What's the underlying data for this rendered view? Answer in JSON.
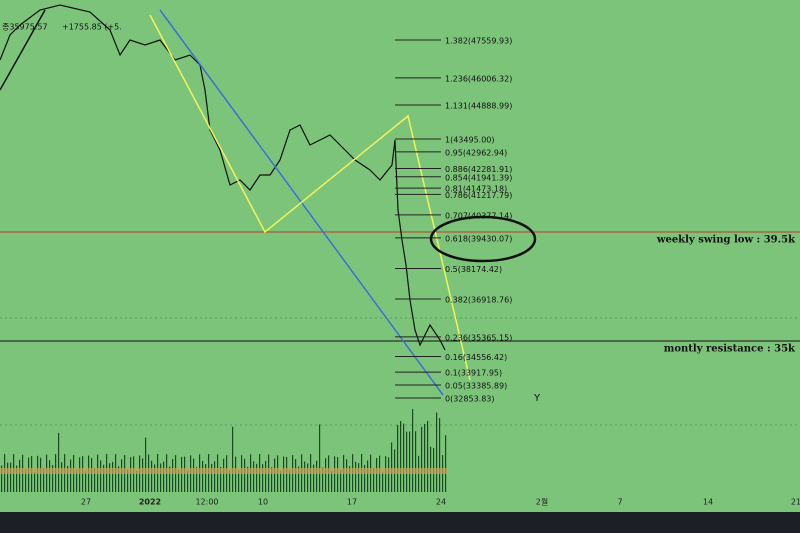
{
  "header": {
    "price": "종35975.57",
    "change": "+1755.85 (+5."
  },
  "fib_levels": [
    {
      "value": 47559.93,
      "label": "1.382(47559.93)"
    },
    {
      "value": 46006.32,
      "label": "1.236(46006.32)"
    },
    {
      "value": 44888.99,
      "label": "1.131(44888.99)"
    },
    {
      "value": 43495.0,
      "label": "1(43495.00)"
    },
    {
      "value": 42962.94,
      "label": "0.95(42962.94)"
    },
    {
      "value": 42281.91,
      "label": "0.886(42281.91)"
    },
    {
      "value": 41941.39,
      "label": "0.854(41941.39)"
    },
    {
      "value": 41473.18,
      "label": "0.81(41473.18)"
    },
    {
      "value": 41217.79,
      "label": "0.786(41217.79)"
    },
    {
      "value": 40377.14,
      "label": "0.707(40377.14)"
    },
    {
      "value": 39430.07,
      "label": "0.618(39430.07)"
    },
    {
      "value": 38174.42,
      "label": "0.5(38174.42)"
    },
    {
      "value": 36918.76,
      "label": "0.382(36918.76)"
    },
    {
      "value": 35365.15,
      "label": "0.236(35365.15)"
    },
    {
      "value": 34556.42,
      "label": "0.16(34556.42)"
    },
    {
      "value": 33917.95,
      "label": "0.1(33917.95)"
    },
    {
      "value": 33385.89,
      "label": "0.05(33385.89)"
    },
    {
      "value": 32853.83,
      "label": "0(32853.83)"
    }
  ],
  "annotations": {
    "weekly": "weekly swing low : 39.5k",
    "monthly": "montly resistance : 35k",
    "marker": "Y"
  },
  "x_axis": [
    "27",
    "2022",
    "12:00",
    "10",
    "17",
    "24",
    "2월",
    "7",
    "14",
    "21"
  ]
}
